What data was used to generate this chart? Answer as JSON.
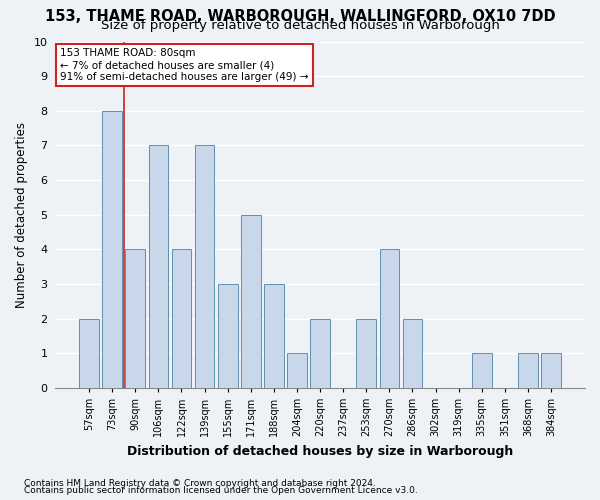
{
  "title": "153, THAME ROAD, WARBOROUGH, WALLINGFORD, OX10 7DD",
  "subtitle": "Size of property relative to detached houses in Warborough",
  "xlabel": "Distribution of detached houses by size in Warborough",
  "ylabel": "Number of detached properties",
  "categories": [
    "57sqm",
    "73sqm",
    "90sqm",
    "106sqm",
    "122sqm",
    "139sqm",
    "155sqm",
    "171sqm",
    "188sqm",
    "204sqm",
    "220sqm",
    "237sqm",
    "253sqm",
    "270sqm",
    "286sqm",
    "302sqm",
    "319sqm",
    "335sqm",
    "351sqm",
    "368sqm",
    "384sqm"
  ],
  "values": [
    2,
    8,
    4,
    7,
    4,
    7,
    3,
    5,
    3,
    1,
    2,
    0,
    2,
    4,
    2,
    0,
    0,
    1,
    0,
    1,
    1
  ],
  "bar_color": "#c8d8ea",
  "bar_edge_color": "#6090b0",
  "vline_x": 1.5,
  "vline_color": "#cc2222",
  "annotation_text": "153 THAME ROAD: 80sqm\n← 7% of detached houses are smaller (4)\n91% of semi-detached houses are larger (49) →",
  "annotation_box_facecolor": "#ffffff",
  "annotation_box_edgecolor": "#cc2222",
  "ylim": [
    0,
    10
  ],
  "yticks": [
    0,
    1,
    2,
    3,
    4,
    5,
    6,
    7,
    8,
    9,
    10
  ],
  "footnote1": "Contains HM Land Registry data © Crown copyright and database right 2024.",
  "footnote2": "Contains public sector information licensed under the Open Government Licence v3.0.",
  "fig_facecolor": "#eef2f7",
  "ax_facecolor": "#eef2f7",
  "grid_color": "#ffffff",
  "title_fontsize": 10.5,
  "subtitle_fontsize": 9.5,
  "xlabel_fontsize": 9,
  "ylabel_fontsize": 8.5,
  "tick_fontsize": 7,
  "annot_fontsize": 7.5,
  "footnote_fontsize": 6.5
}
